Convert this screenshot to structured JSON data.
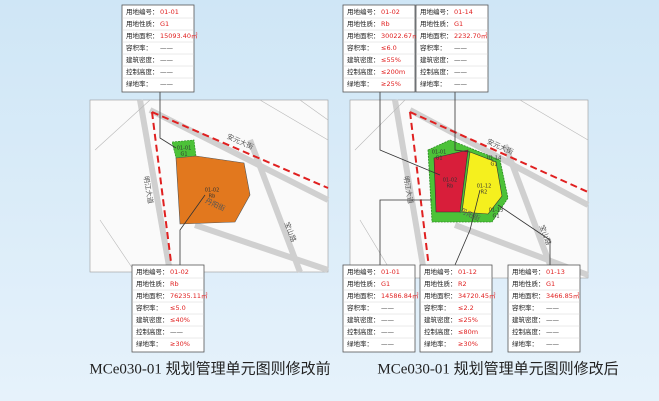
{
  "panels": [
    {
      "caption": "MCe030-01 规划管理单元图则修改前",
      "boxes": [
        {
          "rows": [
            {
              "label": "用地编号：",
              "value": "01-01"
            },
            {
              "label": "用地性质：",
              "value": "G1"
            },
            {
              "label": "用地面积：",
              "value": "15093.40㎡"
            },
            {
              "label": "容积率：",
              "value": "——"
            },
            {
              "label": "建筑密度：",
              "value": "——"
            },
            {
              "label": "控制高度：",
              "value": "——"
            },
            {
              "label": "绿地率：",
              "value": "——"
            }
          ]
        },
        {
          "rows": [
            {
              "label": "用地编号：",
              "value": "01-02"
            },
            {
              "label": "用地性质：",
              "value": "Rb"
            },
            {
              "label": "用地面积：",
              "value": "76235.11㎡"
            },
            {
              "label": "容积率：",
              "value": "≤5.0"
            },
            {
              "label": "建筑密度：",
              "value": "≤40%"
            },
            {
              "label": "控制高度：",
              "value": "——"
            },
            {
              "label": "绿地率：",
              "value": "≥30%"
            }
          ]
        }
      ],
      "parcels": [
        {
          "code": "01-01",
          "use": "G1"
        },
        {
          "code": "01-02",
          "use": "Rb"
        }
      ],
      "streets": [
        "安元大街",
        "明江大道",
        "丹阳街",
        "宝山路"
      ]
    },
    {
      "caption": "MCe030-01 规划管理单元图则修改后",
      "boxes": [
        {
          "rows": [
            {
              "label": "用地编号：",
              "value": "01-02"
            },
            {
              "label": "用地性质：",
              "value": "Rb"
            },
            {
              "label": "用地面积：",
              "value": "30022.67㎡"
            },
            {
              "label": "容积率：",
              "value": "≤6.0"
            },
            {
              "label": "建筑密度：",
              "value": "≤55%"
            },
            {
              "label": "控制高度：",
              "value": "≤200m"
            },
            {
              "label": "绿地率：",
              "value": "≥25%"
            }
          ]
        },
        {
          "rows": [
            {
              "label": "用地编号：",
              "value": "01-14"
            },
            {
              "label": "用地性质：",
              "value": "G1"
            },
            {
              "label": "用地面积：",
              "value": "2232.70㎡"
            },
            {
              "label": "容积率：",
              "value": "——"
            },
            {
              "label": "建筑密度：",
              "value": "——"
            },
            {
              "label": "控制高度：",
              "value": "——"
            },
            {
              "label": "绿地率：",
              "value": "——"
            }
          ]
        },
        {
          "rows": [
            {
              "label": "用地编号：",
              "value": "01-01"
            },
            {
              "label": "用地性质：",
              "value": "G1"
            },
            {
              "label": "用地面积：",
              "value": "14586.84㎡"
            },
            {
              "label": "容积率：",
              "value": "——"
            },
            {
              "label": "建筑密度：",
              "value": "——"
            },
            {
              "label": "控制高度：",
              "value": "——"
            },
            {
              "label": "绿地率：",
              "value": "——"
            }
          ]
        },
        {
          "rows": [
            {
              "label": "用地编号：",
              "value": "01-12"
            },
            {
              "label": "用地性质：",
              "value": "R2"
            },
            {
              "label": "用地面积：",
              "value": "34720.45㎡"
            },
            {
              "label": "容积率：",
              "value": "≤2.2"
            },
            {
              "label": "建筑密度：",
              "value": "≤25%"
            },
            {
              "label": "控制高度：",
              "value": "≤80m"
            },
            {
              "label": "绿地率：",
              "value": "≥30%"
            }
          ]
        },
        {
          "rows": [
            {
              "label": "用地编号：",
              "value": "01-13"
            },
            {
              "label": "用地性质：",
              "value": "G1"
            },
            {
              "label": "用地面积：",
              "value": "3466.85㎡"
            },
            {
              "label": "容积率：",
              "value": "——"
            },
            {
              "label": "建筑密度：",
              "value": "——"
            },
            {
              "label": "控制高度：",
              "value": "——"
            },
            {
              "label": "绿地率：",
              "value": "——"
            }
          ]
        }
      ],
      "parcels": [
        {
          "code": "01-01",
          "use": "G1"
        },
        {
          "code": "01-02",
          "use": "Rb"
        },
        {
          "code": "01-12",
          "use": "R2"
        },
        {
          "code": "01-14",
          "use": "G1"
        },
        {
          "code": "01-13",
          "use": "G1"
        }
      ],
      "streets": [
        "安元大街",
        "明江大道",
        "丹阳街",
        "宝山路"
      ]
    }
  ]
}
